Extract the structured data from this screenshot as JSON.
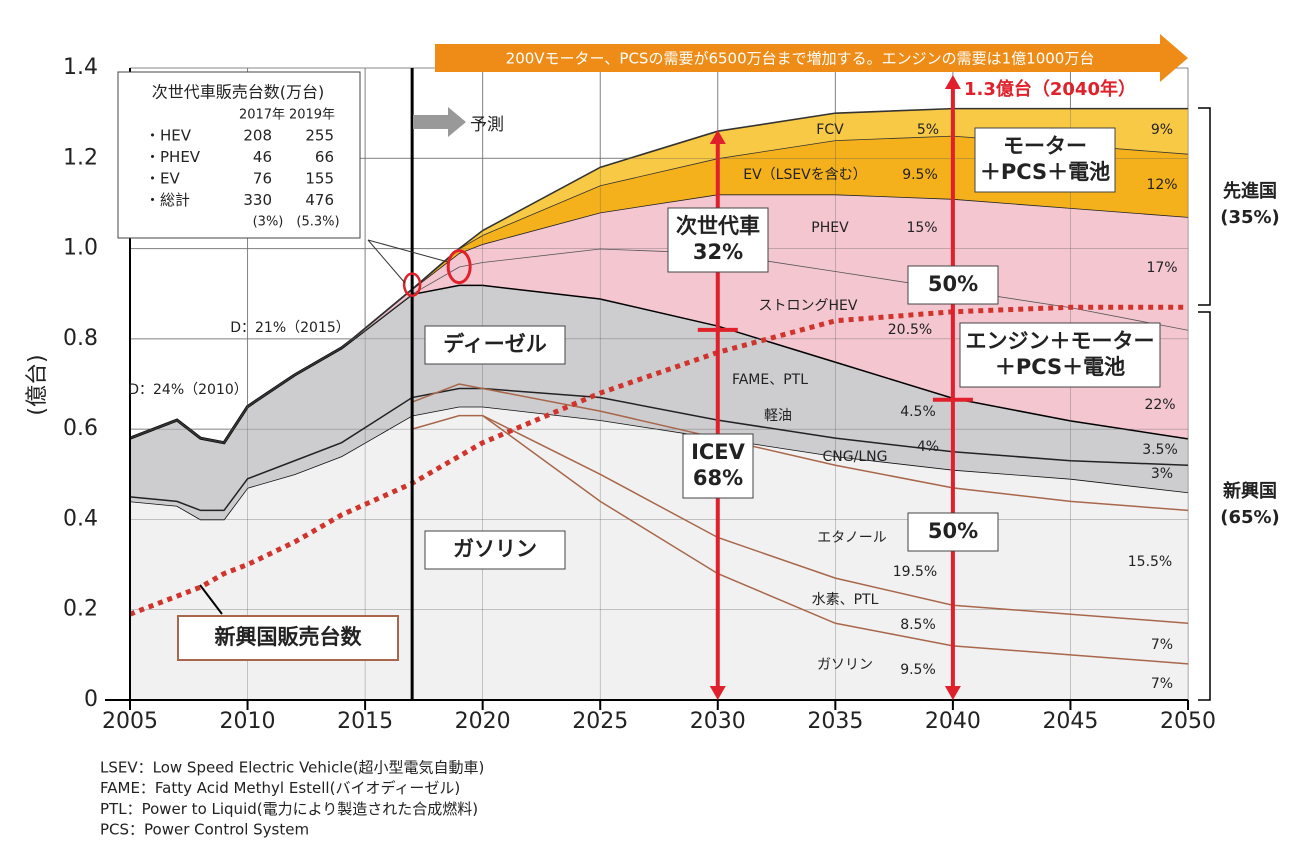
{
  "chart_data": {
    "type": "area",
    "ylabel": "(億台)",
    "x": [
      2005,
      2007,
      2008,
      2009,
      2010,
      2012,
      2014,
      2017,
      2019,
      2020,
      2025,
      2030,
      2035,
      2040,
      2045,
      2050
    ],
    "xlim": [
      2005,
      2050
    ],
    "xticks": [
      2005,
      2010,
      2015,
      2020,
      2025,
      2030,
      2035,
      2040,
      2045,
      2050
    ],
    "ylim": [
      0,
      1.4
    ],
    "yticks": [
      0,
      0.2,
      0.4,
      0.6,
      0.8,
      {
        "value": 1,
        "label": "1.0"
      },
      1.2,
      1.4
    ],
    "grid": true,
    "series": [
      {
        "color": "#f1f1f1",
        "edge": "#111",
        "values": [
          0.44,
          0.43,
          0.4,
          0.4,
          0.47,
          0.5,
          0.54,
          0.63,
          0.65,
          0.65,
          0.62,
          0.58,
          0.54,
          0.51,
          0.49,
          0.46
        ]
      },
      {
        "color": "#cdcdd0",
        "edge": "#000",
        "values": [
          0.14,
          0.19,
          0.18,
          0.17,
          0.18,
          0.22,
          0.24,
          0.27,
          0.27,
          0.27,
          0.27,
          0.25,
          0.21,
          0.16,
          0.13,
          0.12
        ]
      },
      {
        "color": "#f3c6d0",
        "edge": "#555",
        "values": [
          0,
          0,
          0,
          0,
          0,
          0,
          0,
          0,
          0.04,
          0.05,
          0.11,
          0.16,
          0.2,
          0.24,
          0.25,
          0.24
        ]
      },
      {
        "color": "#f3c6d0",
        "edge": "#222",
        "values": [
          0,
          0,
          0,
          0,
          0,
          0,
          0,
          0.01,
          0.03,
          0.04,
          0.08,
          0.13,
          0.17,
          0.2,
          0.22,
          0.25
        ]
      },
      {
        "color": "#f5b11c",
        "edge": "#333",
        "values": [
          0,
          0,
          0,
          0,
          0,
          0,
          0,
          0,
          0.01,
          0.02,
          0.06,
          0.08,
          0.12,
          0.14,
          0.14,
          0.14
        ]
      },
      {
        "color": "#f8c944",
        "edge": "#333",
        "values": [
          0,
          0,
          0,
          0,
          0,
          0,
          0,
          0,
          0,
          0.01,
          0.04,
          0.06,
          0.06,
          0.06,
          0.08,
          0.1
        ]
      }
    ],
    "lines": [
      {
        "color": "#222",
        "values": [
          0.45,
          0.44,
          0.42,
          0.42,
          0.49,
          0.53,
          0.57,
          0.67,
          0.69,
          0.69,
          0.67,
          0.62,
          0.58,
          0.55,
          0.53,
          0.52
        ]
      },
      {
        "color": "#a8674a",
        "values": [
          null,
          null,
          null,
          null,
          null,
          null,
          null,
          0.66,
          0.7,
          0.69,
          0.64,
          0.58,
          0.52,
          0.47,
          0.44,
          0.42
        ]
      },
      {
        "color": "#a8674a",
        "values": [
          null,
          null,
          null,
          null,
          null,
          null,
          null,
          0.6,
          0.63,
          0.63,
          0.5,
          0.36,
          0.27,
          0.21,
          0.19,
          0.17
        ]
      },
      {
        "name": "新興国販売台数",
        "color": "#d0342c",
        "dashed": true,
        "values": [
          0.19,
          0.23,
          0.25,
          0.28,
          0.3,
          0.35,
          0.41,
          0.48,
          0.54,
          0.57,
          0.68,
          0.77,
          0.84,
          0.86,
          0.87,
          0.87
        ]
      },
      {
        "color": "#a8674a",
        "values": [
          null,
          null,
          null,
          null,
          null,
          null,
          null,
          null,
          null,
          0.63,
          0.44,
          0.28,
          0.17,
          0.12,
          0.1,
          0.08
        ]
      }
    ],
    "banner": "200Vモーター、PCSの需要が6500万台まで増加する。エンジンの需要は1億1000万台",
    "annotations": [
      "1.3億台（2040年）",
      "予測",
      "FCV",
      "5%",
      "9%",
      "EV（LSEVを含む）",
      "9.5%",
      "12%",
      "PHEV",
      "15%",
      "17%",
      "ストロングHEV",
      "20.5%",
      "22%",
      "FAME、PTL",
      "4.5%",
      "3.5%",
      "軽油",
      "4%",
      "3%",
      "CNG/LNG",
      "エタノール",
      "19.5%",
      "15.5%",
      "水素、PTL",
      "8.5%",
      "7%",
      "ガソリン",
      "9.5%",
      "7%",
      "D：24%（2010）",
      "D：21%（2015）"
    ],
    "boxes": [
      [
        "ディーゼル"
      ],
      [
        "ガソリン"
      ],
      [
        "次世代車",
        "32%"
      ],
      [
        "ICEV",
        "68%"
      ],
      [
        "50%"
      ],
      [
        "50%"
      ],
      [
        "モーター",
        "＋PCS＋電池"
      ],
      [
        "エンジン＋モーター",
        "＋PCS＋電池"
      ],
      [
        "先進国",
        "(35%)"
      ],
      [
        "新興国",
        "(65%)"
      ]
    ],
    "inset": {
      "title": "次世代車販売台数(万台)",
      "columns": [
        "2017年",
        "2019年"
      ],
      "rows": [
        [
          "・HEV",
          208,
          255
        ],
        [
          "・PHEV",
          46,
          66
        ],
        [
          "・EV",
          76,
          155
        ],
        [
          "・総計",
          330,
          476
        ],
        [
          "",
          "(3%)",
          "(5.3%)"
        ]
      ]
    },
    "footnotes": [
      "LSEV：Low Speed Electric Vehicle(超小型電気自動車)",
      "FAME：Fatty Acid Methyl Estell(バイオディーゼル)",
      "PTL：Power to Liquid(電力により製造された合成燃料)",
      "PCS：Power Control System"
    ]
  }
}
